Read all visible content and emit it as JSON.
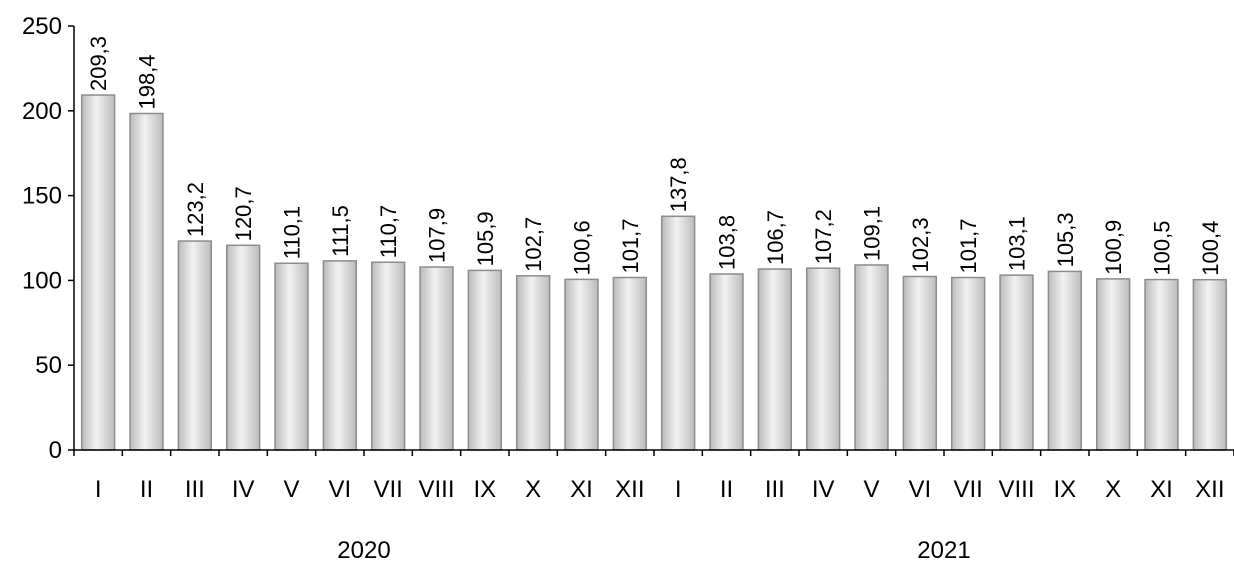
{
  "chart_data": {
    "type": "bar",
    "categories": [
      "I",
      "II",
      "III",
      "IV",
      "V",
      "VI",
      "VII",
      "VIII",
      "IX",
      "X",
      "XI",
      "XII",
      "I",
      "II",
      "III",
      "IV",
      "V",
      "VI",
      "VII",
      "VIII",
      "IX",
      "X",
      "XI",
      "XII"
    ],
    "values": [
      209.3,
      198.4,
      123.2,
      120.7,
      110.1,
      111.5,
      110.7,
      107.9,
      105.9,
      102.7,
      100.6,
      101.7,
      137.8,
      103.8,
      106.7,
      107.2,
      109.1,
      102.3,
      101.7,
      103.1,
      105.3,
      100.9,
      100.5,
      100.4
    ],
    "data_labels": [
      "209,3",
      "198,4",
      "123,2",
      "120,7",
      "110,1",
      "111,5",
      "110,7",
      "107,9",
      "105,9",
      "102,7",
      "100,6",
      "101,7",
      "137,8",
      "103,8",
      "106,7",
      "107,2",
      "109,1",
      "102,3",
      "101,7",
      "103,1",
      "105,3",
      "100,9",
      "100,5",
      "100,4"
    ],
    "groups": [
      {
        "label": "2020",
        "start": 0,
        "count": 12
      },
      {
        "label": "2021",
        "start": 12,
        "count": 12
      }
    ],
    "ylim": [
      0,
      250
    ],
    "yticks": [
      0,
      50,
      100,
      150,
      200,
      250
    ],
    "title": "",
    "xlabel": "",
    "ylabel": "",
    "grid": false,
    "legend": false,
    "colors": {
      "bar_light": "#f2f2f2",
      "bar_dark": "#bcbcbc",
      "bar_stroke": "#8c8c8c"
    }
  }
}
